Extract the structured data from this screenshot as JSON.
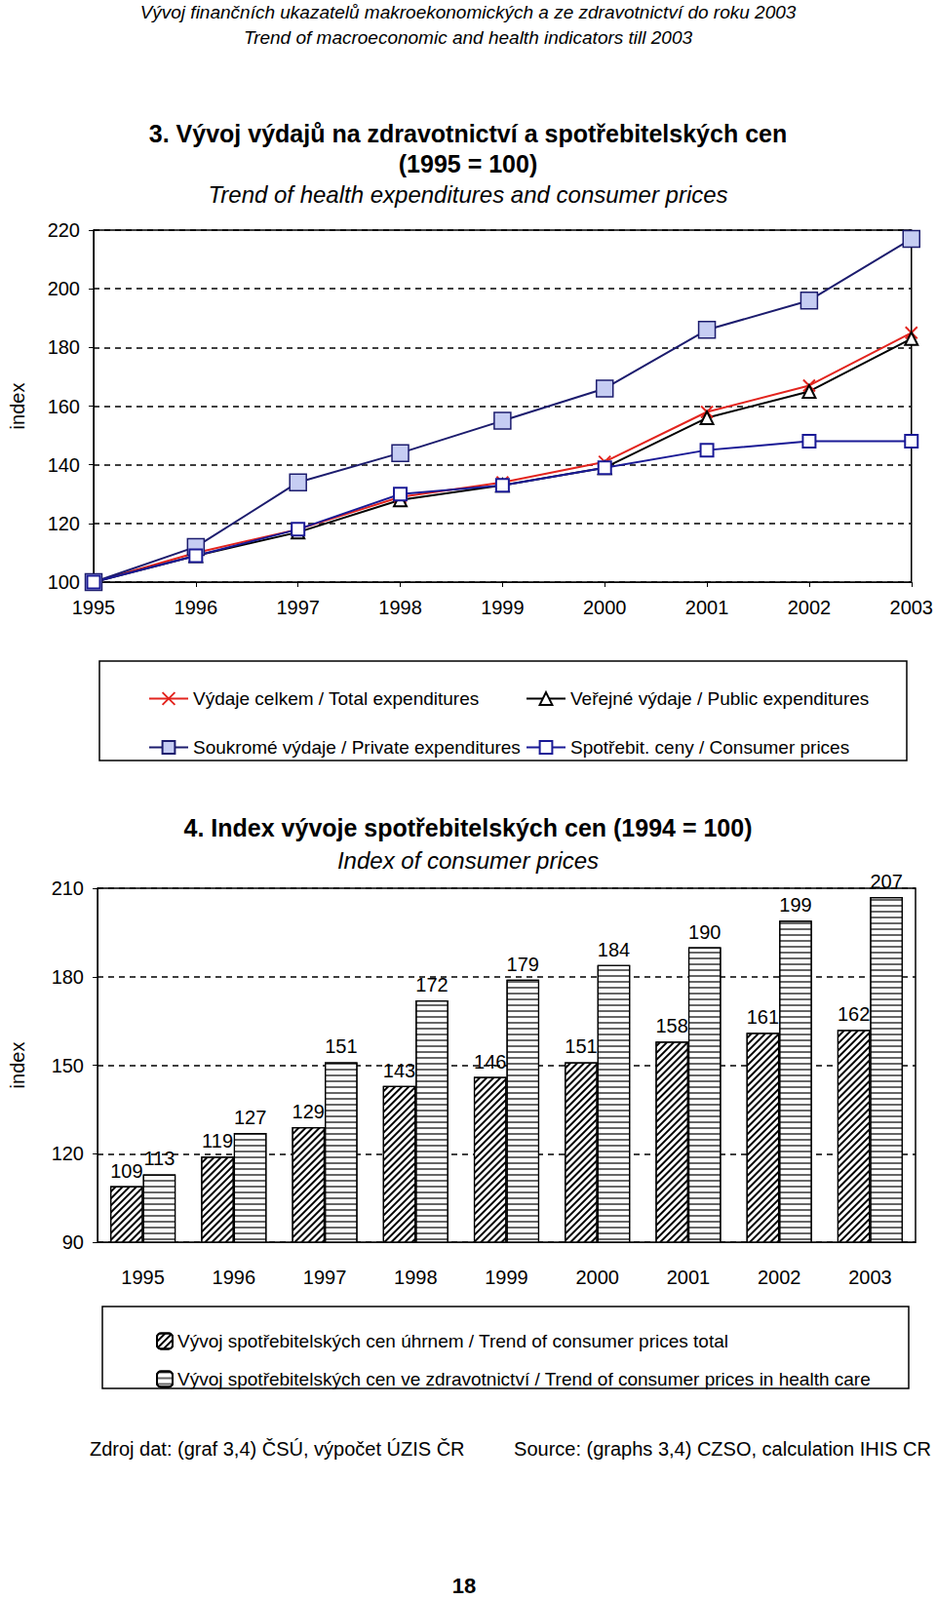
{
  "header": {
    "lines": [
      "Vývoj finančních ukazatelů makroekonomických a ze zdravotnictví do roku 2003",
      "Trend of macroeconomic and health indicators till 2003"
    ]
  },
  "chart_data": [
    {
      "type": "line",
      "title": "3. Vývoj výdajů na zdravotnictví a spotřebitelských cen\n(1995 = 100)",
      "subtitle": "Trend of health expenditures and consumer prices",
      "ylabel": "index",
      "categories": [
        "1995",
        "1996",
        "1997",
        "1998",
        "1999",
        "2000",
        "2001",
        "2002",
        "2003"
      ],
      "series": [
        {
          "name": "Výdaje celkem / Total expenditures",
          "color": "#e3241e",
          "marker": "x",
          "values": [
            100,
            110,
            118,
            129,
            134,
            141,
            158,
            167,
            185
          ]
        },
        {
          "name": "Veřejné výdaje / Public expenditures",
          "color": "#000000",
          "marker": "triangle",
          "values": [
            100,
            109,
            117,
            128,
            133,
            139,
            156,
            165,
            183
          ]
        },
        {
          "name": "Soukromé výdaje / Private expenditures",
          "color": "#1c1c6e",
          "marker": "square",
          "values": [
            100,
            112,
            134,
            144,
            155,
            166,
            186,
            196,
            217
          ]
        },
        {
          "name": "Spotřebit. ceny / Consumer prices",
          "color": "#1a1a96",
          "marker": "square_open",
          "values": [
            100,
            109,
            118,
            130,
            133,
            139,
            145,
            148,
            148
          ]
        }
      ],
      "ylim": [
        100,
        220
      ],
      "yticks": [
        100,
        120,
        140,
        160,
        180,
        200,
        220
      ],
      "grid": true,
      "legend": "bottom"
    },
    {
      "type": "bar",
      "title": "4. Index vývoje spotřebitelských cen (1994 = 100)",
      "subtitle": "Index of consumer prices",
      "ylabel": "index",
      "categories": [
        "1995",
        "1996",
        "1997",
        "1998",
        "1999",
        "2000",
        "2001",
        "2002",
        "2003"
      ],
      "series": [
        {
          "name": "Vývoj spotřebitelských cen úhrnem / Trend of consumer prices total",
          "color": "#ffffff",
          "values": [
            109,
            119,
            129,
            143,
            146,
            151,
            158,
            161,
            162
          ]
        },
        {
          "name": "Vývoj spotřebitelských cen ve zdravotnictví / Trend of consumer prices in health care",
          "color": "#ffffff",
          "values": [
            113,
            127,
            151,
            172,
            179,
            184,
            190,
            199,
            207
          ]
        }
      ],
      "ylim": [
        90,
        210
      ],
      "yticks": [
        90,
        120,
        150,
        180,
        210
      ],
      "grid": true,
      "legend": "bottom",
      "data_labels": true
    }
  ],
  "footer": {
    "source_cs": "Zdroj dat: (graf 3,4) ČSÚ, výpočet ÚZIS ČR",
    "source_en": "Source: (graphs 3,4) CZSO, calculation IHIS CR",
    "page_number": "18"
  }
}
